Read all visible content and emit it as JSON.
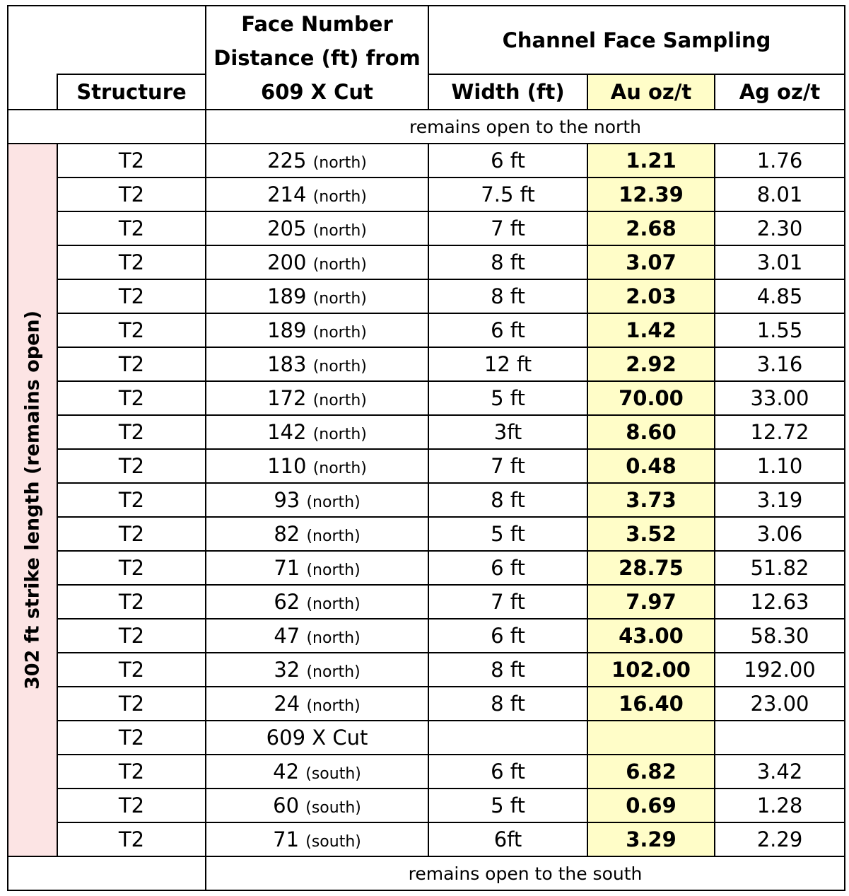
{
  "headers": {
    "structure": "Structure",
    "face_number": [
      "Face Number",
      "Distance (ft) from",
      "609 X Cut"
    ],
    "channel_group": "Channel Face Sampling",
    "width": "Width (ft)",
    "au": "Au oz/t",
    "ag": "Ag oz/t"
  },
  "side_label": "302 ft strike length (remains open)",
  "note_north": "remains open to the north",
  "note_south": "remains open to the south",
  "rows": [
    {
      "structure": "T2",
      "distance": "225",
      "dir": "(north)",
      "width": "6 ft",
      "au": "1.21",
      "ag": "1.76"
    },
    {
      "structure": "T2",
      "distance": "214",
      "dir": "(north)",
      "width": "7.5 ft",
      "au": "12.39",
      "ag": "8.01"
    },
    {
      "structure": "T2",
      "distance": "205",
      "dir": "(north)",
      "width": "7 ft",
      "au": "2.68",
      "ag": "2.30"
    },
    {
      "structure": "T2",
      "distance": "200",
      "dir": "(north)",
      "width": "8 ft",
      "au": "3.07",
      "ag": "3.01"
    },
    {
      "structure": "T2",
      "distance": "189",
      "dir": "(north)",
      "width": "8 ft",
      "au": "2.03",
      "ag": "4.85"
    },
    {
      "structure": "T2",
      "distance": "189",
      "dir": "(north)",
      "width": "6 ft",
      "au": "1.42",
      "ag": "1.55"
    },
    {
      "structure": "T2",
      "distance": "183",
      "dir": "(north)",
      "width": "12 ft",
      "au": "2.92",
      "ag": "3.16"
    },
    {
      "structure": "T2",
      "distance": "172",
      "dir": "(north)",
      "width": "5 ft",
      "au": "70.00",
      "ag": "33.00"
    },
    {
      "structure": "T2",
      "distance": "142",
      "dir": "(north)",
      "width": "3ft",
      "au": "8.60",
      "ag": "12.72"
    },
    {
      "structure": "T2",
      "distance": "110",
      "dir": "(north)",
      "width": "7 ft",
      "au": "0.48",
      "ag": "1.10"
    },
    {
      "structure": "T2",
      "distance": "93",
      "dir": "(north)",
      "width": "8 ft",
      "au": "3.73",
      "ag": "3.19"
    },
    {
      "structure": "T2",
      "distance": "82",
      "dir": "(north)",
      "width": "5 ft",
      "au": "3.52",
      "ag": "3.06"
    },
    {
      "structure": "T2",
      "distance": "71",
      "dir": "(north)",
      "width": "6 ft",
      "au": "28.75",
      "ag": "51.82"
    },
    {
      "structure": "T2",
      "distance": "62",
      "dir": "(north)",
      "width": "7 ft",
      "au": "7.97",
      "ag": "12.63"
    },
    {
      "structure": "T2",
      "distance": "47",
      "dir": "(north)",
      "width": "6 ft",
      "au": "43.00",
      "ag": "58.30"
    },
    {
      "structure": "T2",
      "distance": "32",
      "dir": "(north)",
      "width": "8 ft",
      "au": "102.00",
      "ag": "192.00"
    },
    {
      "structure": "T2",
      "distance": "24",
      "dir": "(north)",
      "width": "8 ft",
      "au": "16.40",
      "ag": "23.00"
    },
    {
      "structure": "T2",
      "distance": "609 X Cut",
      "dir": "",
      "width": "",
      "au": "",
      "ag": ""
    },
    {
      "structure": "T2",
      "distance": "42",
      "dir": "(south)",
      "width": "6 ft",
      "au": "6.82",
      "ag": "3.42"
    },
    {
      "structure": "T2",
      "distance": "60",
      "dir": "(south)",
      "width": "5 ft",
      "au": "0.69",
      "ag": "1.28"
    },
    {
      "structure": "T2",
      "distance": "71",
      "dir": "(south)",
      "width": "6ft",
      "au": "3.29",
      "ag": "2.29"
    }
  ]
}
